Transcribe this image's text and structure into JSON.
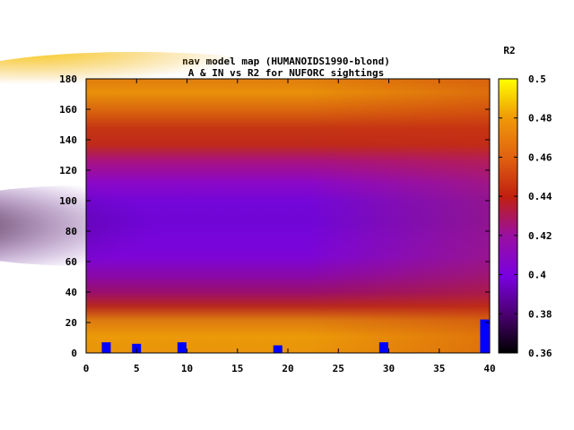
{
  "chart_data": {
    "type": "heatmap",
    "title_line1": "nav model map (HUMANOIDS1990-blond)",
    "title_line2": "A & IN vs R2 for NUFORC sightings",
    "xlabel": "",
    "ylabel": "",
    "xlim": [
      0,
      40
    ],
    "ylim": [
      0,
      180
    ],
    "x_ticks": [
      0,
      5,
      10,
      15,
      20,
      25,
      30,
      35,
      40
    ],
    "y_ticks": [
      0,
      20,
      40,
      60,
      80,
      100,
      120,
      140,
      160,
      180
    ],
    "colorbar": {
      "label": "R2",
      "min": 0.36,
      "max": 0.5,
      "ticks": [
        "0.36",
        "0.38",
        "0.4",
        "0.42",
        "0.44",
        "0.46",
        "0.48",
        "0.5"
      ],
      "palette": "black-purple-red-orange-yellow"
    },
    "surface_profile_y": [
      {
        "y": 0,
        "r2": 0.475
      },
      {
        "y": 10,
        "r2": 0.47
      },
      {
        "y": 20,
        "r2": 0.455
      },
      {
        "y": 30,
        "r2": 0.43
      },
      {
        "y": 40,
        "r2": 0.41
      },
      {
        "y": 50,
        "r2": 0.4
      },
      {
        "y": 60,
        "r2": 0.395
      },
      {
        "y": 70,
        "r2": 0.39
      },
      {
        "y": 85,
        "r2": 0.375
      },
      {
        "y": 100,
        "r2": 0.39
      },
      {
        "y": 115,
        "r2": 0.4
      },
      {
        "y": 130,
        "r2": 0.425
      },
      {
        "y": 140,
        "r2": 0.44
      },
      {
        "y": 150,
        "r2": 0.455
      },
      {
        "y": 165,
        "r2": 0.475
      },
      {
        "y": 180,
        "r2": 0.47
      }
    ],
    "bars": [
      {
        "x": 2,
        "height": 7
      },
      {
        "x": 5,
        "height": 6
      },
      {
        "x": 9.5,
        "height": 7
      },
      {
        "x": 19,
        "height": 5
      },
      {
        "x": 29.5,
        "height": 7
      },
      {
        "x": 39.5,
        "height": 22
      }
    ],
    "bar_color": "#0000ff"
  }
}
